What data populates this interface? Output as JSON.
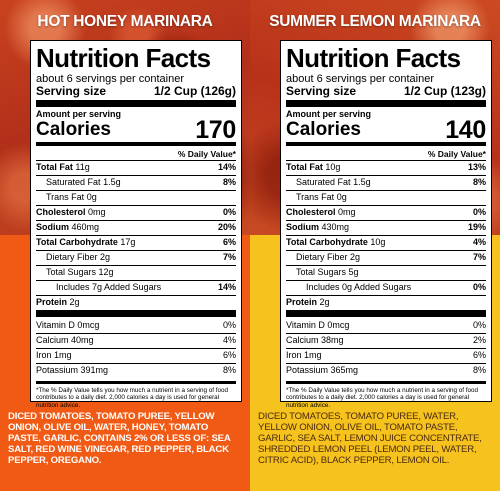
{
  "products": [
    {
      "title": "HOT HONEY MARINARA",
      "heading": "Nutrition Facts",
      "servings": "about 6 servings per container",
      "serving_size_label": "Serving size",
      "serving_size_value": "1/2 Cup (126g)",
      "amount_per_serving": "Amount per serving",
      "calories_label": "Calories",
      "calories_value": "170",
      "dv_header": "% Daily Value*",
      "nutrients": [
        {
          "name": "Total Fat",
          "amount": "11g",
          "dv": "14%"
        },
        {
          "name": "Saturated Fat",
          "amount": "1.5g",
          "dv": "8%"
        },
        {
          "name": "Trans Fat",
          "amount": "0g",
          "dv": ""
        },
        {
          "name": "Cholesterol",
          "amount": "0mg",
          "dv": "0%"
        },
        {
          "name": "Sodium",
          "amount": "460mg",
          "dv": "20%"
        },
        {
          "name": "Total Carbohydrate",
          "amount": "17g",
          "dv": "6%"
        },
        {
          "name": "Dietary Fiber",
          "amount": "2g",
          "dv": "7%"
        },
        {
          "name": "Total Sugars",
          "amount": "12g",
          "dv": ""
        },
        {
          "name": "Includes 7g Added Sugars",
          "amount": "",
          "dv": "14%"
        },
        {
          "name": "Protein",
          "amount": "2g",
          "dv": ""
        }
      ],
      "vitamins": [
        {
          "name": "Vitamin D 0mcg",
          "dv": "0%"
        },
        {
          "name": "Calcium 40mg",
          "dv": "4%"
        },
        {
          "name": "Iron 1mg",
          "dv": "6%"
        },
        {
          "name": "Potassium 391mg",
          "dv": "8%"
        }
      ],
      "footnote": "*The % Daily Value tells you how much a nutrient in a serving of food contributes to a daily diet. 2,000 calories a day is used for general nutrition advice.",
      "ingredients": "DICED TOMATOES, TOMATO PUREE, YELLOW ONION, OLIVE OIL, WATER, HONEY, TOMATO PASTE, GARLIC, CONTAINS 2% OR LESS OF: SEA SALT, RED WINE VINEGAR, RED PEPPER, BLACK PEPPER, OREGANO."
    },
    {
      "title": "SUMMER LEMON MARINARA",
      "heading": "Nutrition Facts",
      "servings": "about 6 servings per container",
      "serving_size_label": "Serving size",
      "serving_size_value": "1/2 Cup (123g)",
      "amount_per_serving": "Amount per serving",
      "calories_label": "Calories",
      "calories_value": "140",
      "dv_header": "% Daily Value*",
      "nutrients": [
        {
          "name": "Total Fat",
          "amount": "10g",
          "dv": "13%"
        },
        {
          "name": "Saturated Fat",
          "amount": "1.5g",
          "dv": "8%"
        },
        {
          "name": "Trans Fat",
          "amount": "0g",
          "dv": ""
        },
        {
          "name": "Cholesterol",
          "amount": "0mg",
          "dv": "0%"
        },
        {
          "name": "Sodium",
          "amount": "430mg",
          "dv": "19%"
        },
        {
          "name": "Total Carbohydrate",
          "amount": "10g",
          "dv": "4%"
        },
        {
          "name": "Dietary Fiber",
          "amount": "2g",
          "dv": "7%"
        },
        {
          "name": "Total Sugars",
          "amount": "5g",
          "dv": ""
        },
        {
          "name": "Includes 0g Added Sugars",
          "amount": "",
          "dv": "0%"
        },
        {
          "name": "Protein",
          "amount": "2g",
          "dv": ""
        }
      ],
      "vitamins": [
        {
          "name": "Vitamin D 0mcg",
          "dv": "0%"
        },
        {
          "name": "Calcium 38mg",
          "dv": "2%"
        },
        {
          "name": "Iron 1mg",
          "dv": "6%"
        },
        {
          "name": "Potassium 365mg",
          "dv": "8%"
        }
      ],
      "footnote": "*The % Daily Value tells you how much a nutrient in a serving of food contributes to a daily diet. 2,000 calories a day is used for general nutrition advice.",
      "ingredients": "DICED TOMATOES, TOMATO PUREE, WATER, YELLOW ONION, OLIVE OIL, TOMATO PASTE, GARLIC, SEA SALT, LEMON JUICE CONCENTRATE, SHREDDED LEMON PEEL (LEMON PEEL, WATER, CITRIC ACID), BLACK PEPPER, LEMON OIL."
    }
  ]
}
